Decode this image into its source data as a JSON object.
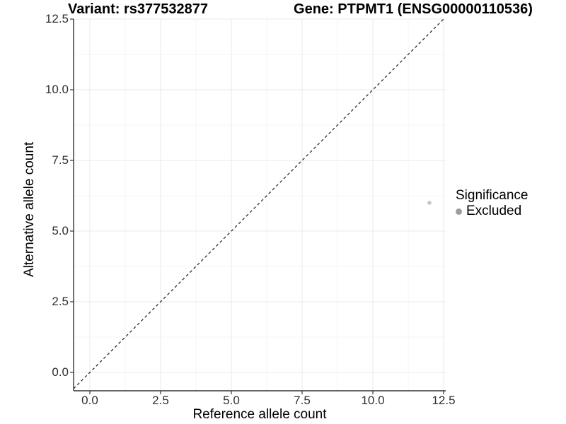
{
  "header": {
    "title_left": "Variant: rs377532877",
    "title_right": "Gene: PTPMT1 (ENSG00000110536)"
  },
  "axes": {
    "x": {
      "label": "Reference allele count",
      "tick_labels": [
        "0.0",
        "2.5",
        "5.0",
        "7.5",
        "10.0",
        "12.5"
      ]
    },
    "y": {
      "label": "Alternative allele count",
      "tick_labels": [
        "0.0",
        "2.5",
        "5.0",
        "7.5",
        "10.0",
        "12.5"
      ]
    }
  },
  "legend": {
    "title": "Significance",
    "items": [
      {
        "label": "Excluded",
        "color": "#9e9e9e"
      }
    ]
  },
  "chart_data": {
    "type": "scatter",
    "title": "Variant: rs377532877   Gene: PTPMT1 (ENSG00000110536)",
    "xlabel": "Reference allele count",
    "ylabel": "Alternative allele count",
    "xlim": [
      -0.575,
      12.575
    ],
    "ylim": [
      -0.65,
      12.5
    ],
    "x_ticks": [
      0,
      2.5,
      5,
      7.5,
      10,
      12.5
    ],
    "y_ticks": [
      0,
      2.5,
      5,
      7.5,
      10,
      12.5
    ],
    "x_minor_ticks": [
      1.25,
      3.75,
      6.25,
      8.75,
      11.25
    ],
    "y_minor_ticks": [
      1.25,
      3.75,
      6.25,
      8.75,
      11.25
    ],
    "grid": "major+minor",
    "legend_position": "right",
    "series": [
      {
        "name": "Excluded",
        "color": "#c4c4c4",
        "marker_radius": 2.8,
        "points": [
          {
            "x": 12,
            "y": 6
          }
        ]
      }
    ],
    "reference_line": {
      "type": "identity",
      "equation": "y = x",
      "style": "dashed",
      "color": "#1a1a1a"
    },
    "colors": {
      "grid_major": "#e9e9e9",
      "grid_minor": "#f5f5f5",
      "axis_line": "#333333",
      "tick_text": "#2f2f2f",
      "point": "#c4c4c4",
      "legend_key": "#9e9e9e"
    }
  }
}
